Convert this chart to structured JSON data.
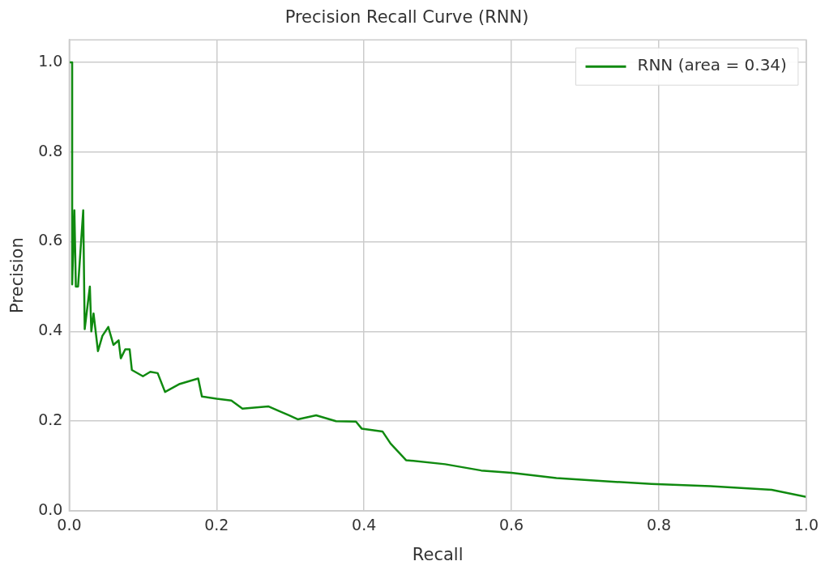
{
  "chart_data": {
    "type": "line",
    "title": "Precision Recall Curve (RNN)",
    "xlabel": "Recall",
    "ylabel": "Precision",
    "xlim": [
      0,
      1
    ],
    "xticks": [
      {
        "value": 0,
        "label": "0.0"
      },
      0.2,
      0.4,
      0.6,
      0.8,
      {
        "value": 1,
        "label": "1.0"
      }
    ],
    "ylim": [
      0,
      1.05
    ],
    "yticks": [
      {
        "value": 0,
        "label": "0.0"
      },
      0.2,
      0.4,
      0.6,
      0.8,
      {
        "value": 1,
        "label": "1.0"
      }
    ],
    "grid": true,
    "legend": "top right",
    "marker": "none",
    "line_style": "solid",
    "series": [
      {
        "name": "RNN (area = 0.34)",
        "color": "#108a10",
        "x": [
          0,
          0.004,
          0.004,
          0.007,
          0.009,
          0.012,
          0.019,
          0.021,
          0.028,
          0.03,
          0.033,
          0.039,
          0.045,
          0.053,
          0.06,
          0.067,
          0.07,
          0.076,
          0.082,
          0.085,
          0.1,
          0.11,
          0.12,
          0.13,
          0.15,
          0.175,
          0.18,
          0.2,
          0.22,
          0.235,
          0.27,
          0.298,
          0.31,
          0.335,
          0.362,
          0.389,
          0.397,
          0.425,
          0.436,
          0.457,
          0.51,
          0.559,
          0.6,
          0.661,
          0.737,
          0.79,
          0.87,
          0.953,
          1.0
        ],
        "values": [
          1.0,
          1.0,
          0.505,
          0.67,
          0.5,
          0.5,
          0.67,
          0.405,
          0.5,
          0.4,
          0.44,
          0.356,
          0.39,
          0.41,
          0.37,
          0.38,
          0.34,
          0.36,
          0.36,
          0.314,
          0.3,
          0.31,
          0.307,
          0.265,
          0.283,
          0.295,
          0.255,
          0.25,
          0.246,
          0.228,
          0.233,
          0.213,
          0.204,
          0.213,
          0.2,
          0.199,
          0.183,
          0.177,
          0.15,
          0.113,
          0.104,
          0.09,
          0.085,
          0.073,
          0.065,
          0.06,
          0.055,
          0.047,
          0.031
        ]
      }
    ]
  }
}
